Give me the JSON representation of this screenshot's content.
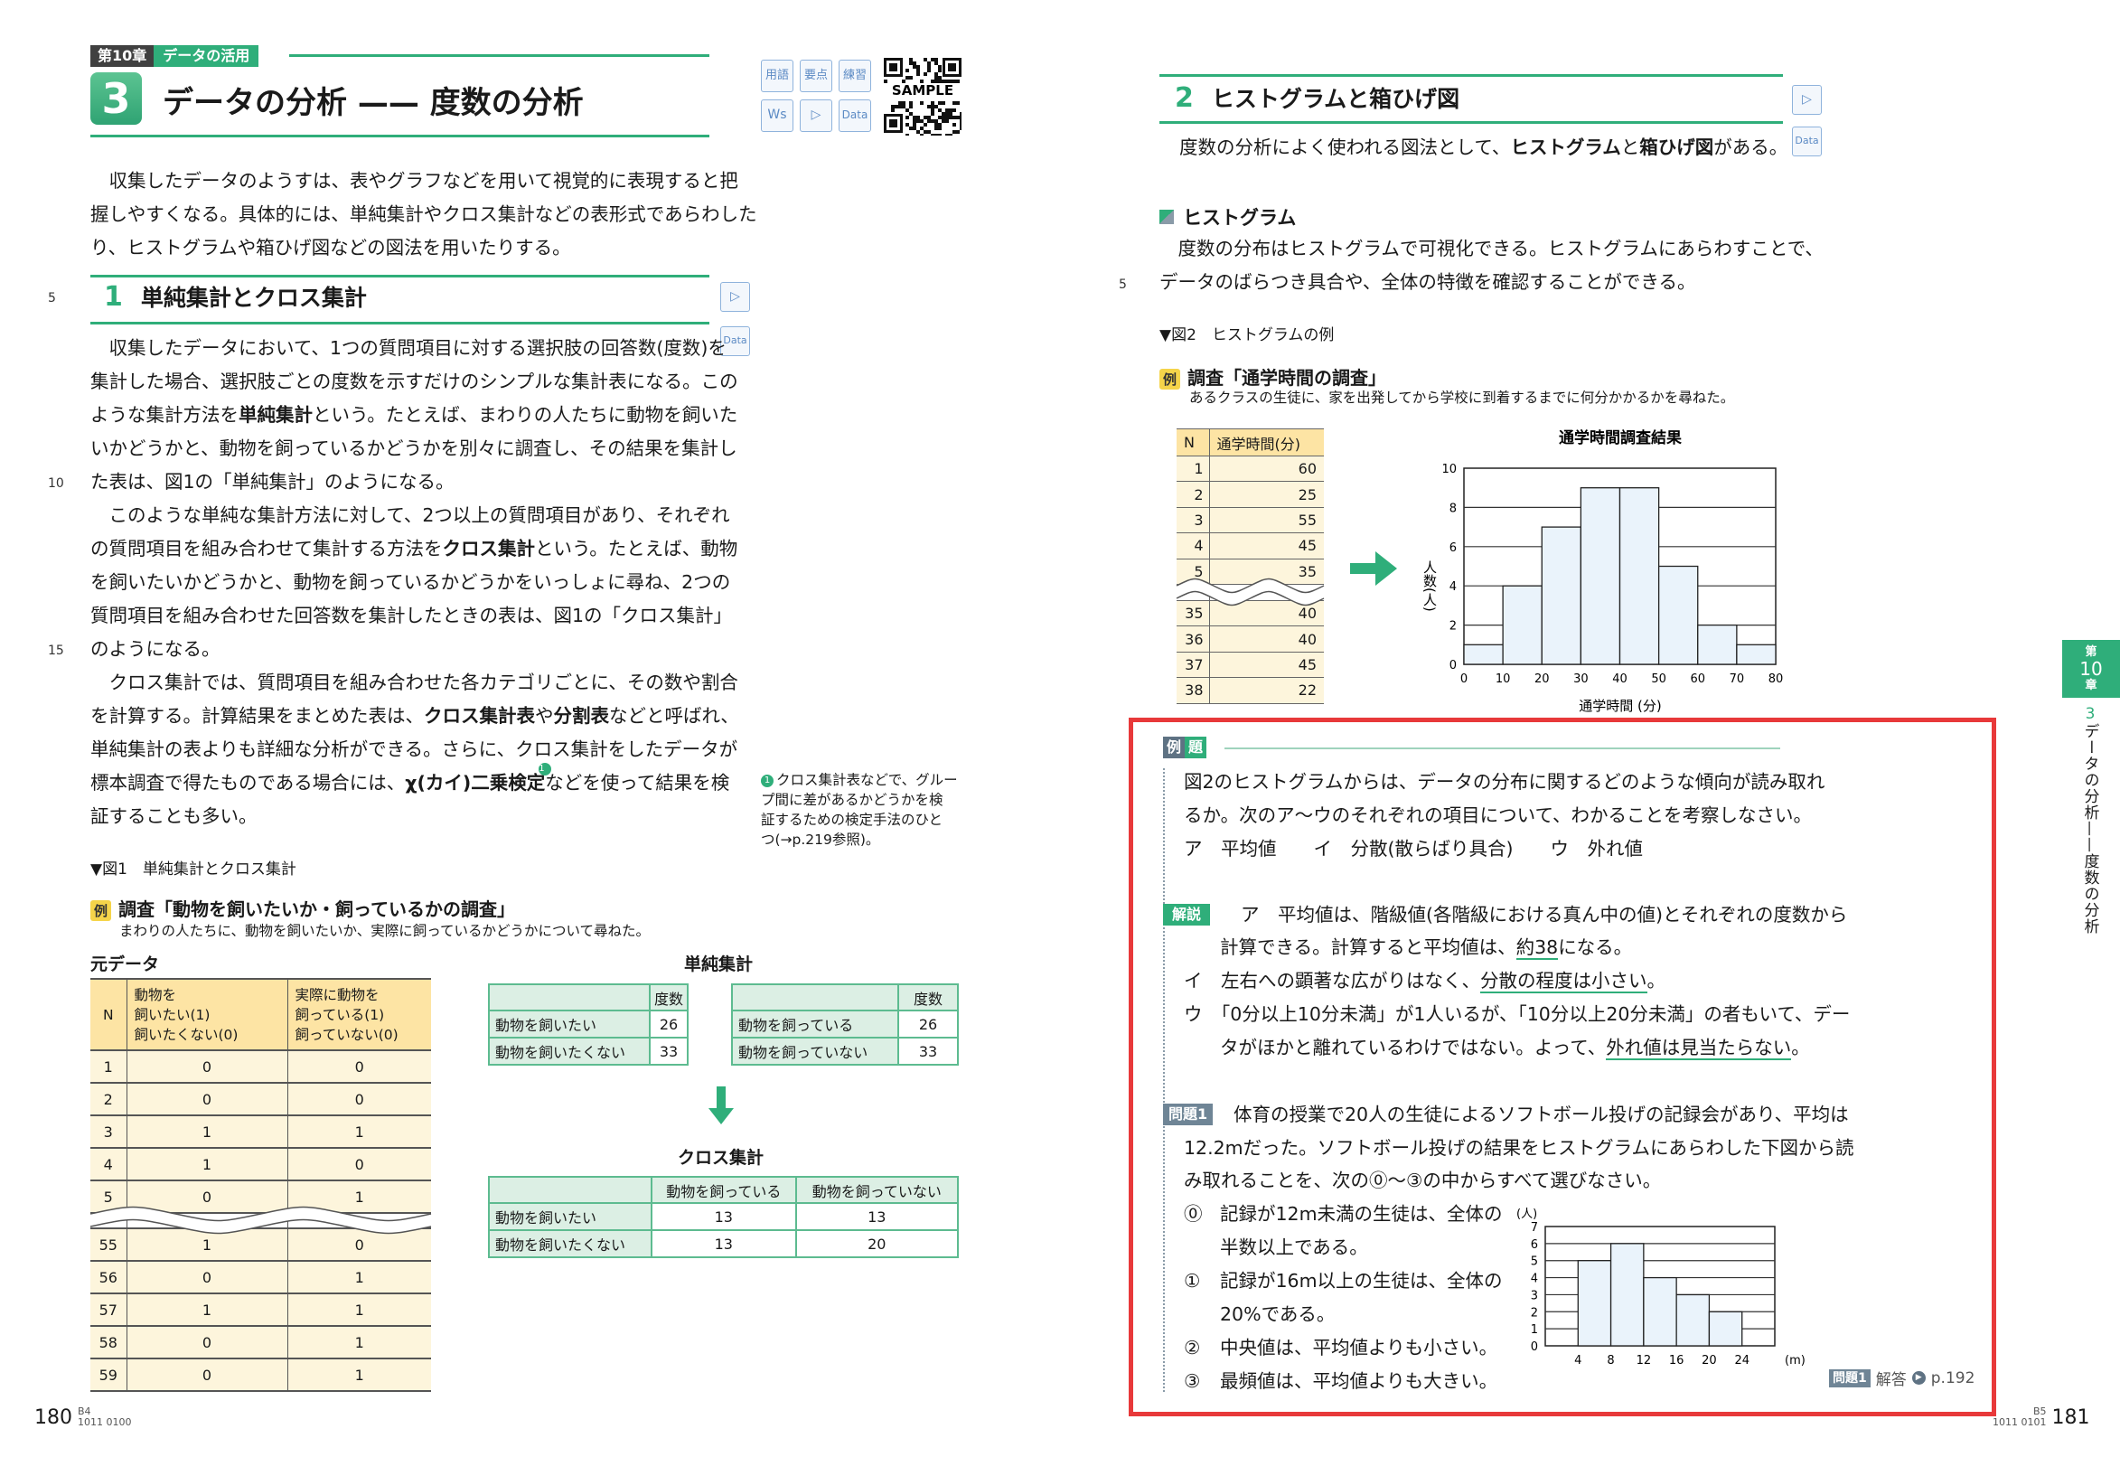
{
  "colors": {
    "accent": "#2fae7a",
    "highlight_box": "#e8393a",
    "table_yellow": "#fde4a4",
    "table_green": "#dcefe4",
    "hist_bar": "#eaf3fb"
  },
  "left": {
    "chapter_tag": {
      "num": "第10章",
      "name": "データの活用"
    },
    "section_num": "3",
    "title": "データの分析 —— 度数の分析",
    "icons": [
      "用語",
      "要点",
      "練習",
      "Ws",
      "▷",
      "Data"
    ],
    "qr": {
      "label": "SAMPLE"
    },
    "intro": [
      [
        "　収集したデータのようすは、表やグラフなどを用いて視覚的に表現すると把",
        "握しやすくなる。具体的には、単純集計やクロス集計などの表形式であらわした",
        "り、ヒストグラムや箱ひげ図などの図法を用いたりする。"
      ]
    ],
    "sec1": {
      "num": "1",
      "title": "単純集計とクロス集計",
      "play": "▷",
      "data": "Data"
    },
    "body": [
      [
        "　収集したデータにおいて、1つの質問項目に対する選択肢の回答数(度数)を",
        "集計した場合、選択肢ごとの度数を示すだけのシンプルな集計表になる。この",
        [
          {
            "text": "ような集計方法を"
          },
          {
            "text": "単純集計",
            "bold": true
          },
          {
            "text": "という。たとえば、まわりの人たちに動物を飼いた"
          }
        ],
        "いかどうかと、動物を飼っているかどうかを別々に調査し、その結果を集計し",
        "た表は、図1の「単純集計」のようになる。"
      ],
      [
        "　このような単純な集計方法に対して、2つ以上の質問項目があり、それぞれ",
        [
          {
            "text": "の質問項目を組み合わせて集計する方法を"
          },
          {
            "text": "クロス集計",
            "bold": true
          },
          {
            "text": "という。たとえば、動物"
          }
        ],
        "を飼いたいかどうかと、動物を飼っているかどうかをいっしょに尋ね、2つの",
        "質問項目を組み合わせた回答数を集計したときの表は、図1の「クロス集計」",
        "のようになる。"
      ],
      [
        "　クロス集計では、質問項目を組み合わせた各カテゴリごとに、その数や割合",
        [
          {
            "text": "を計算する。計算結果をまとめた表は、"
          },
          {
            "text": "クロス集計表",
            "bold": true
          },
          {
            "text": "や"
          },
          {
            "text": "分割表",
            "bold": true
          },
          {
            "text": "などと呼ばれ、"
          }
        ],
        "単純集計の表よりも詳細な分析ができる。さらに、クロス集計をしたデータが",
        [
          {
            "text": "標本調査で得たものである場合には、"
          },
          {
            "text": "χ(カイ)二乗検定",
            "bold": true
          },
          {
            "text": "1",
            "note": true
          },
          {
            "text": "などを使って結果を検"
          }
        ],
        "証することも多い。"
      ]
    ],
    "footnote": {
      "marker": "1",
      "lines": [
        "クロス集計表などで、グルー",
        "プ間に差があるかどうかを検",
        "証するための検定手法のひと",
        "つ(→p.219参照)。"
      ]
    },
    "line_numbers": [
      "5",
      "10",
      "15"
    ],
    "fig1_caption": "▼図1　単純集計とクロス集計",
    "example": {
      "badge": "例",
      "title": "調査「動物を飼いたいか・飼っているかの調査」",
      "desc": "まわりの人たちに、動物を飼いたいか、実際に飼っているかどうかについて尋ねた。"
    },
    "raw": {
      "label": "元データ",
      "header": [
        "N",
        "動物を|飼いたい(1)|飼いたくない(0)",
        "実際に動物を|飼っている(1)|飼っていない(0)"
      ],
      "rows_top": [
        [
          "1",
          "0",
          "0"
        ],
        [
          "2",
          "0",
          "0"
        ],
        [
          "3",
          "1",
          "1"
        ],
        [
          "4",
          "1",
          "0"
        ],
        [
          "5",
          "0",
          "1"
        ]
      ],
      "rows_bottom": [
        [
          "55",
          "1",
          "0"
        ],
        [
          "56",
          "0",
          "1"
        ],
        [
          "57",
          "1",
          "1"
        ],
        [
          "58",
          "0",
          "1"
        ],
        [
          "59",
          "0",
          "1"
        ]
      ]
    },
    "simple": {
      "label": "単純集計",
      "t1": {
        "header": [
          "",
          "度数"
        ],
        "rows": [
          [
            "動物を飼いたい",
            "26"
          ],
          [
            "動物を飼いたくない",
            "33"
          ]
        ]
      },
      "t2": {
        "header": [
          "",
          "度数"
        ],
        "rows": [
          [
            "動物を飼っている",
            "26"
          ],
          [
            "動物を飼っていない",
            "33"
          ]
        ]
      }
    },
    "cross": {
      "label": "クロス集計",
      "header": [
        "",
        "動物を飼っている",
        "動物を飼っていない"
      ],
      "rows": [
        [
          "動物を飼いたい",
          "13",
          "13"
        ],
        [
          "動物を飼いたくない",
          "13",
          "20"
        ]
      ]
    },
    "page": {
      "num": "180",
      "code1": "B4",
      "code2": "1011 0100"
    }
  },
  "right": {
    "sec2": {
      "num": "2",
      "title": "ヒストグラムと箱ひげ図",
      "play": "▷",
      "data": "Data"
    },
    "intro": [
      [
        [
          {
            "text": "度数の分析によく使われる図法として、"
          },
          {
            "text": "ヒストグラム",
            "bold": true
          },
          {
            "text": "と"
          },
          {
            "text": "箱ひげ図",
            "bold": true
          },
          {
            "text": "がある。"
          }
        ]
      ]
    ],
    "hist_heading": "ヒストグラム",
    "hist_para": [
      [
        "　度数の分布はヒストグラムで可視化できる。ヒストグラムにあらわすことで、",
        "データのばらつき具合や、全体の特徴を確認することができる。"
      ]
    ],
    "line_numbers": [
      "5"
    ],
    "fig2_caption": "▼図2　ヒストグラムの例",
    "example": {
      "badge": "例",
      "title": "調査「通学時間の調査」",
      "desc": "あるクラスの生徒に、家を出発してから学校に到着するまでに何分かかるかを尋ねた。"
    },
    "commute": {
      "header": [
        "N",
        "通学時間(分)"
      ],
      "rows_top": [
        [
          "1",
          "60"
        ],
        [
          "2",
          "25"
        ],
        [
          "3",
          "55"
        ],
        [
          "4",
          "45"
        ],
        [
          "5",
          "35"
        ]
      ],
      "rows_bottom": [
        [
          "35",
          "40"
        ],
        [
          "36",
          "40"
        ],
        [
          "37",
          "45"
        ],
        [
          "38",
          "22"
        ]
      ]
    },
    "reidai": {
      "tag": [
        "例",
        "題"
      ],
      "question": [
        [
          "図2のヒストグラムからは、データの分布に関するどのような傾向が読み取れ",
          "るか。次のア〜ウのそれぞれの項目について、わかることを考察しなさい。",
          "ア　平均値　　イ　分散(散らばり具合)　　ウ　外れ値"
        ]
      ],
      "kaisetsu_tag": "解説",
      "kaisetsu": [
        [
          "ア　平均値は、階級値(各階級における真ん中の値)とそれぞれの度数から"
        ],
        [
          [
            {
              "text": "計算できる。計算すると平均値は、"
            },
            {
              "text": "約38",
              "underline": true
            },
            {
              "text": "になる。"
            }
          ]
        ],
        [
          [
            {
              "text": "イ　左右への顕著な広がりはなく、"
            },
            {
              "text": "分散の程度は小さい",
              "underline": true
            },
            {
              "text": "。"
            }
          ]
        ],
        [
          "ウ　「0分以上10分未満」が1人いるが、「10分以上20分未満」の者もいて、デー"
        ],
        [
          [
            {
              "text": "タがほかと離れているわけではない。よって、"
            },
            {
              "text": "外れ値は見当たらない",
              "underline": true
            },
            {
              "text": "。"
            }
          ]
        ]
      ]
    },
    "mondai": {
      "tag": "問題1",
      "lines": [
        [
          "体育の授業で20人の生徒によるソフトボール投げの記録会があり、平均は"
        ],
        [
          "12.2mだった。ソフトボール投げの結果をヒストグラムにあらわした下図から読"
        ],
        [
          "み取れることを、次の⓪〜③の中からすべて選びなさい。"
        ]
      ],
      "options": [
        {
          "mark": "⓪",
          "lines": [
            "記録が12m未満の生徒は、全体の",
            "半数以上である。"
          ]
        },
        {
          "mark": "①",
          "lines": [
            "記録が16m以上の生徒は、全体の",
            "20%である。"
          ]
        },
        {
          "mark": "②",
          "lines": [
            "中央値は、平均値よりも小さい。"
          ]
        },
        {
          "mark": "③",
          "lines": [
            "最頻値は、平均値よりも大きい。"
          ]
        }
      ],
      "answer": {
        "tag": "問題1",
        "label": "解答",
        "page": "p.192"
      }
    },
    "side_tab": {
      "chapter_top": "第",
      "chapter_num": "10",
      "chapter_bottom": "章",
      "section_num": "3",
      "section_title": "データの分析——度数の分析"
    },
    "page": {
      "num": "181",
      "code1": "B5",
      "code2": "1011 0101"
    }
  },
  "chart_data": [
    {
      "type": "bar",
      "title": "通学時間調査結果",
      "xlabel": "通学時間 (分)",
      "ylabel": "人数(人)",
      "bins": [
        [
          0,
          10
        ],
        [
          10,
          20
        ],
        [
          20,
          30
        ],
        [
          30,
          40
        ],
        [
          40,
          50
        ],
        [
          50,
          60
        ],
        [
          60,
          70
        ],
        [
          70,
          80
        ]
      ],
      "values": [
        1,
        4,
        7,
        9,
        9,
        5,
        2,
        1
      ],
      "xticks": [
        "0",
        "10",
        "20",
        "30",
        "40",
        "50",
        "60",
        "70",
        "80"
      ],
      "yticks": [
        "0",
        "2",
        "4",
        "6",
        "8",
        "10"
      ],
      "xlim": [
        0,
        80
      ],
      "ylim": [
        0,
        10
      ],
      "grid": "horizontal"
    },
    {
      "type": "bar",
      "xlabel": "(m)",
      "ylabel": "(人)",
      "bins": [
        [
          4,
          8
        ],
        [
          8,
          12
        ],
        [
          12,
          16
        ],
        [
          16,
          20
        ],
        [
          20,
          24
        ]
      ],
      "values": [
        5,
        6,
        4,
        3,
        2
      ],
      "xticks": [
        "4",
        "8",
        "12",
        "16",
        "20",
        "24"
      ],
      "yticks": [
        "0",
        "1",
        "2",
        "3",
        "4",
        "5",
        "6",
        "7"
      ],
      "xlim": [
        0,
        28
      ],
      "ylim": [
        0,
        7
      ],
      "grid": "horizontal"
    }
  ]
}
